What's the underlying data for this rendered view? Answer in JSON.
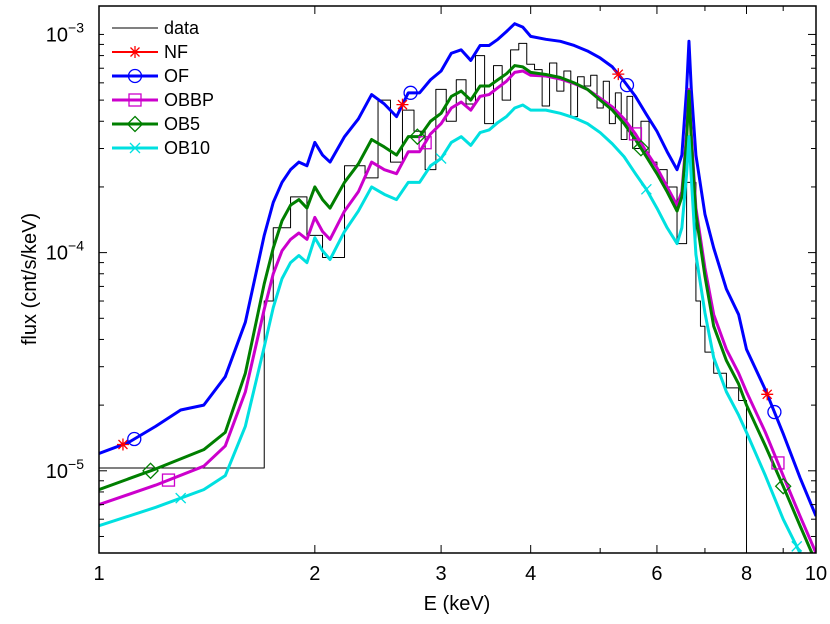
{
  "chart_data": {
    "type": "line",
    "xscale": "log",
    "yscale": "log",
    "xlim": [
      1,
      10
    ],
    "ylim": [
      4.2e-06,
      0.00135
    ],
    "xlabel": "E (keV)",
    "ylabel": "flux (cnt/s/keV)",
    "x_tick_values": [
      1,
      2,
      3,
      4,
      6,
      8,
      10
    ],
    "x_tick_labels": [
      "1",
      "2",
      "3",
      "4",
      "6",
      "8",
      "10"
    ],
    "y_tick_labels": [
      {
        "value": 1e-05,
        "mantissa": "10",
        "exponent": "−5"
      },
      {
        "value": 0.0001,
        "mantissa": "10",
        "exponent": "−4"
      },
      {
        "value": 0.001,
        "mantissa": "10",
        "exponent": "−3"
      }
    ],
    "legend_position": "top-left",
    "series": [
      {
        "name": "data",
        "color": "#000000",
        "style": "step",
        "width": 1,
        "marker": "none",
        "x": [
          1.0,
          1.7,
          1.75,
          1.85,
          1.95,
          2.05,
          2.2,
          2.35,
          2.45,
          2.55,
          2.65,
          2.75,
          2.85,
          2.95,
          3.05,
          3.15,
          3.25,
          3.35,
          3.45,
          3.55,
          3.65,
          3.75,
          3.85,
          3.95,
          4.05,
          4.15,
          4.25,
          4.35,
          4.45,
          4.55,
          4.65,
          4.75,
          4.85,
          4.95,
          5.05,
          5.15,
          5.25,
          5.35,
          5.45,
          5.55,
          5.7,
          5.85,
          6.0,
          6.2,
          6.4,
          6.6,
          6.8,
          6.9,
          7.0,
          7.2,
          7.5,
          7.8,
          8.0,
          8.3
        ],
        "y": [
          1.03e-05,
          6e-05,
          0.00013,
          0.00018,
          0.00012,
          9.5e-05,
          0.00025,
          0.00022,
          0.0005,
          0.00026,
          0.00045,
          0.00036,
          0.00024,
          0.00056,
          0.0004,
          0.00062,
          0.00048,
          0.0008,
          0.00039,
          0.00072,
          0.0005,
          0.00085,
          0.00091,
          0.00073,
          0.00069,
          0.00047,
          0.00074,
          0.00055,
          0.00068,
          0.00042,
          0.00064,
          0.00058,
          0.00065,
          0.00046,
          0.00061,
          0.00039,
          0.00054,
          0.00033,
          0.00052,
          0.0003,
          0.0004,
          0.00026,
          0.00024,
          0.0002,
          0.00011,
          0.00021,
          6e-05,
          4.6e-05,
          3.5e-05,
          2.8e-05,
          2.4e-05,
          2.1e-05,
          3.6e-06,
          3.6e-06
        ]
      },
      {
        "name": "NF",
        "color": "#ff0000",
        "style": "line",
        "width": 2,
        "marker": "star",
        "x": [
          1.0,
          1.1,
          1.2,
          1.3,
          1.4,
          1.5,
          1.6,
          1.7,
          1.75,
          1.8,
          1.85,
          1.9,
          1.95,
          2.0,
          2.05,
          2.1,
          2.2,
          2.3,
          2.4,
          2.5,
          2.6,
          2.7,
          2.8,
          2.9,
          3.0,
          3.1,
          3.2,
          3.3,
          3.4,
          3.5,
          3.6,
          3.7,
          3.8,
          3.9,
          4.0,
          4.2,
          4.4,
          4.6,
          4.8,
          5.0,
          5.2,
          5.4,
          5.6,
          5.8,
          6.0,
          6.2,
          6.4,
          6.5,
          6.6,
          6.65,
          6.7,
          6.8,
          7.0,
          7.2,
          7.5,
          7.8,
          8.0,
          8.5,
          9.0,
          9.5,
          10.0
        ],
        "y": [
          1.2e-05,
          1.35e-05,
          1.6e-05,
          1.9e-05,
          2e-05,
          2.7e-05,
          4.8e-05,
          0.00012,
          0.00017,
          0.00021,
          0.00024,
          0.00026,
          0.00025,
          0.00032,
          0.00028,
          0.00026,
          0.00034,
          0.00041,
          0.00053,
          0.00048,
          0.00042,
          0.00054,
          0.00054,
          0.00062,
          0.00068,
          0.00082,
          0.00085,
          0.00076,
          0.00089,
          0.00089,
          0.00095,
          0.00103,
          0.00112,
          0.00108,
          0.00098,
          0.00095,
          0.00093,
          0.00089,
          0.00084,
          0.00078,
          0.00071,
          0.00061,
          0.00052,
          0.00043,
          0.00036,
          0.00029,
          0.00024,
          0.00028,
          0.00056,
          0.00093,
          0.00056,
          0.00028,
          0.00015,
          0.000105,
          6.8e-05,
          5.2e-05,
          3.6e-05,
          2.35e-05,
          1.48e-05,
          9.3e-06,
          6.2e-06
        ]
      },
      {
        "name": "OF",
        "color": "#0000ff",
        "style": "line",
        "width": 3,
        "marker": "circle",
        "x": [
          1.0,
          1.1,
          1.2,
          1.3,
          1.4,
          1.5,
          1.6,
          1.7,
          1.75,
          1.8,
          1.85,
          1.9,
          1.95,
          2.0,
          2.05,
          2.1,
          2.2,
          2.3,
          2.4,
          2.5,
          2.6,
          2.7,
          2.8,
          2.9,
          3.0,
          3.1,
          3.2,
          3.3,
          3.4,
          3.5,
          3.6,
          3.7,
          3.8,
          3.9,
          4.0,
          4.2,
          4.4,
          4.6,
          4.8,
          5.0,
          5.2,
          5.4,
          5.6,
          5.8,
          6.0,
          6.2,
          6.4,
          6.5,
          6.6,
          6.65,
          6.7,
          6.8,
          7.0,
          7.2,
          7.5,
          7.8,
          8.0,
          8.5,
          9.0,
          9.5,
          10.0
        ],
        "y": [
          1.2e-05,
          1.35e-05,
          1.6e-05,
          1.9e-05,
          2e-05,
          2.7e-05,
          4.8e-05,
          0.00012,
          0.00017,
          0.00021,
          0.00024,
          0.00026,
          0.00025,
          0.00032,
          0.00028,
          0.00026,
          0.00034,
          0.00041,
          0.00053,
          0.00048,
          0.00042,
          0.00054,
          0.00054,
          0.00062,
          0.00068,
          0.00082,
          0.00085,
          0.00076,
          0.00089,
          0.00089,
          0.00095,
          0.00103,
          0.00112,
          0.00108,
          0.00098,
          0.00095,
          0.00093,
          0.00089,
          0.00084,
          0.00078,
          0.00071,
          0.00061,
          0.00052,
          0.00043,
          0.00036,
          0.00029,
          0.00024,
          0.00028,
          0.00056,
          0.00093,
          0.00056,
          0.00028,
          0.00015,
          0.000105,
          6.8e-05,
          5.2e-05,
          3.6e-05,
          2.35e-05,
          1.48e-05,
          9.3e-06,
          6.2e-06
        ]
      },
      {
        "name": "OBBP",
        "color": "#cc00cc",
        "style": "line",
        "width": 3,
        "marker": "square",
        "x": [
          1.0,
          1.2,
          1.4,
          1.5,
          1.6,
          1.7,
          1.75,
          1.8,
          1.85,
          1.9,
          1.95,
          2.0,
          2.05,
          2.1,
          2.2,
          2.3,
          2.4,
          2.5,
          2.6,
          2.7,
          2.8,
          2.9,
          3.0,
          3.1,
          3.2,
          3.3,
          3.4,
          3.5,
          3.6,
          3.7,
          3.8,
          3.9,
          4.0,
          4.2,
          4.4,
          4.6,
          4.8,
          5.0,
          5.2,
          5.4,
          5.6,
          5.8,
          6.0,
          6.2,
          6.4,
          6.5,
          6.6,
          6.65,
          6.7,
          6.8,
          7.0,
          7.2,
          7.5,
          7.8,
          8.0,
          8.5,
          9.0,
          9.5,
          10.0
        ],
        "y": [
          7e-06,
          8.6e-06,
          1.05e-05,
          1.3e-05,
          2.3e-05,
          5.5e-05,
          8e-05,
          0.000102,
          0.000115,
          0.000123,
          0.000115,
          0.000145,
          0.000125,
          0.000115,
          0.000155,
          0.00019,
          0.00026,
          0.00024,
          0.00023,
          0.00029,
          0.00029,
          0.00035,
          0.00039,
          0.00046,
          0.00049,
          0.00045,
          0.00052,
          0.00053,
          0.00057,
          0.00061,
          0.00067,
          0.00068,
          0.00065,
          0.000645,
          0.000625,
          0.000595,
          0.00056,
          0.00051,
          0.000465,
          0.00041,
          0.00035,
          0.00029,
          0.000245,
          0.0002,
          0.000165,
          0.00019,
          0.00035,
          0.00056,
          0.00035,
          0.00016,
          8.5e-05,
          5.2e-05,
          3.6e-05,
          2.8e-05,
          2.3e-05,
          1.5e-05,
          9.5e-06,
          6.2e-06,
          4.2e-06
        ]
      },
      {
        "name": "OB5",
        "color": "#007f00",
        "style": "line",
        "width": 3,
        "marker": "diamond",
        "x": [
          1.0,
          1.2,
          1.4,
          1.5,
          1.6,
          1.7,
          1.75,
          1.8,
          1.85,
          1.9,
          1.95,
          2.0,
          2.05,
          2.1,
          2.2,
          2.3,
          2.4,
          2.5,
          2.6,
          2.7,
          2.8,
          2.9,
          3.0,
          3.1,
          3.2,
          3.3,
          3.4,
          3.5,
          3.6,
          3.7,
          3.8,
          3.9,
          4.0,
          4.2,
          4.4,
          4.6,
          4.8,
          5.0,
          5.2,
          5.4,
          5.6,
          5.8,
          6.0,
          6.2,
          6.4,
          6.5,
          6.6,
          6.65,
          6.7,
          6.8,
          7.0,
          7.2,
          7.5,
          7.8,
          8.0,
          8.5,
          9.0,
          9.5,
          10.0
        ],
        "y": [
          8.2e-06,
          1.02e-05,
          1.25e-05,
          1.5e-05,
          2.8e-05,
          7.2e-05,
          0.000105,
          0.00014,
          0.000165,
          0.000175,
          0.00016,
          0.0002,
          0.000175,
          0.00016,
          0.00021,
          0.000255,
          0.00033,
          0.000305,
          0.00028,
          0.00034,
          0.00034,
          0.0004,
          0.000435,
          0.00052,
          0.00055,
          0.0005,
          0.00058,
          0.00058,
          0.00062,
          0.00066,
          0.00072,
          0.00071,
          0.00067,
          0.000655,
          0.000635,
          0.0006,
          0.00056,
          0.0005,
          0.00045,
          0.00039,
          0.00033,
          0.000275,
          0.00023,
          0.00019,
          0.000155,
          0.00018,
          0.00033,
          0.00055,
          0.00033,
          0.00015,
          7.8e-05,
          4.6e-05,
          3.2e-05,
          2.5e-05,
          2e-05,
          1.3e-05,
          8.5e-06,
          5.6e-06,
          3.8e-06
        ]
      },
      {
        "name": "OB10",
        "color": "#00e0e0",
        "style": "line",
        "width": 3,
        "marker": "x",
        "x": [
          1.0,
          1.2,
          1.4,
          1.5,
          1.6,
          1.7,
          1.75,
          1.8,
          1.85,
          1.9,
          1.95,
          2.0,
          2.05,
          2.1,
          2.2,
          2.3,
          2.4,
          2.5,
          2.6,
          2.7,
          2.8,
          2.9,
          3.0,
          3.1,
          3.2,
          3.3,
          3.4,
          3.5,
          3.6,
          3.7,
          3.8,
          3.9,
          4.0,
          4.2,
          4.4,
          4.6,
          4.8,
          5.0,
          5.2,
          5.4,
          5.6,
          5.8,
          6.0,
          6.2,
          6.4,
          6.5,
          6.6,
          6.65,
          6.7,
          6.8,
          7.0,
          7.2,
          7.5,
          7.8,
          8.0,
          8.5,
          9.0,
          9.5,
          10.0
        ],
        "y": [
          5.6e-06,
          6.8e-06,
          8.2e-06,
          9.5e-06,
          1.6e-05,
          3.7e-05,
          5.6e-05,
          7.6e-05,
          9e-05,
          9.7e-05,
          9e-05,
          0.000117,
          0.000102,
          9.3e-05,
          0.000125,
          0.000155,
          0.0002,
          0.000185,
          0.000175,
          0.00021,
          0.00021,
          0.00025,
          0.00027,
          0.00032,
          0.00034,
          0.00031,
          0.000355,
          0.000365,
          0.000395,
          0.00042,
          0.00046,
          0.000475,
          0.00045,
          0.00045,
          0.000435,
          0.000415,
          0.00039,
          0.000355,
          0.000315,
          0.000275,
          0.00023,
          0.000195,
          0.00016,
          0.00013,
          0.00011,
          0.00013,
          0.00023,
          0.00034,
          0.00022,
          9.8e-05,
          5.3e-05,
          3.3e-05,
          2.3e-05,
          1.8e-05,
          1.5e-05,
          9.5e-06,
          6e-06,
          4.2e-06,
          3e-06
        ]
      }
    ],
    "markers": [
      {
        "series": "NF",
        "x": [
          1.08,
          2.65,
          5.3,
          8.55
        ]
      },
      {
        "series": "OF",
        "x": [
          1.12,
          2.72,
          5.45,
          8.75
        ]
      },
      {
        "series": "OBBP",
        "x": [
          1.25,
          2.85,
          5.6,
          8.85
        ]
      },
      {
        "series": "OB5",
        "x": [
          1.18,
          2.78,
          5.7,
          9.0
        ]
      },
      {
        "series": "OB10",
        "x": [
          1.3,
          3.0,
          5.8,
          9.4
        ]
      }
    ]
  }
}
